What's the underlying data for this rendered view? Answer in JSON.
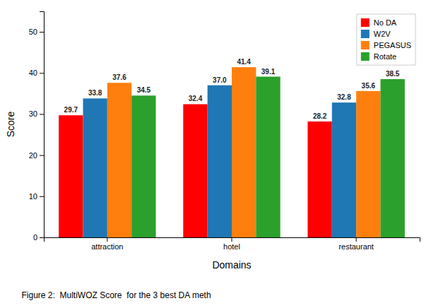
{
  "chart_data": {
    "type": "bar",
    "categories": [
      "attraction",
      "hotel",
      "restaurant"
    ],
    "series": [
      {
        "name": "No DA",
        "color": "#ff0000",
        "values": [
          29.7,
          32.4,
          28.2
        ],
        "value_labels": [
          "29.7",
          "32.4",
          "28.2"
        ]
      },
      {
        "name": "W2V",
        "color": "#1f77b4",
        "values": [
          33.8,
          37.0,
          32.8
        ],
        "value_labels": [
          "33.8",
          "37.0",
          "32.8"
        ]
      },
      {
        "name": "PEGASUS",
        "color": "#ff7f0e",
        "values": [
          37.6,
          41.4,
          35.6
        ],
        "value_labels": [
          "37.6",
          "41.4",
          "35.6"
        ]
      },
      {
        "name": "Rotate",
        "color": "#2ca02c",
        "values": [
          34.5,
          39.1,
          38.5
        ],
        "value_labels": [
          "34.5",
          "39.1",
          "38.5"
        ]
      }
    ],
    "x_label": "Domains",
    "y_label": "Score",
    "ylim": [
      0,
      55
    ],
    "yticks": [
      0,
      10,
      20,
      30,
      40,
      50
    ],
    "grid": false,
    "legend": "upper right",
    "data_labels": true,
    "caption": "Figure 2:  MultiWOZ Score  for the 3 best DA meth"
  }
}
